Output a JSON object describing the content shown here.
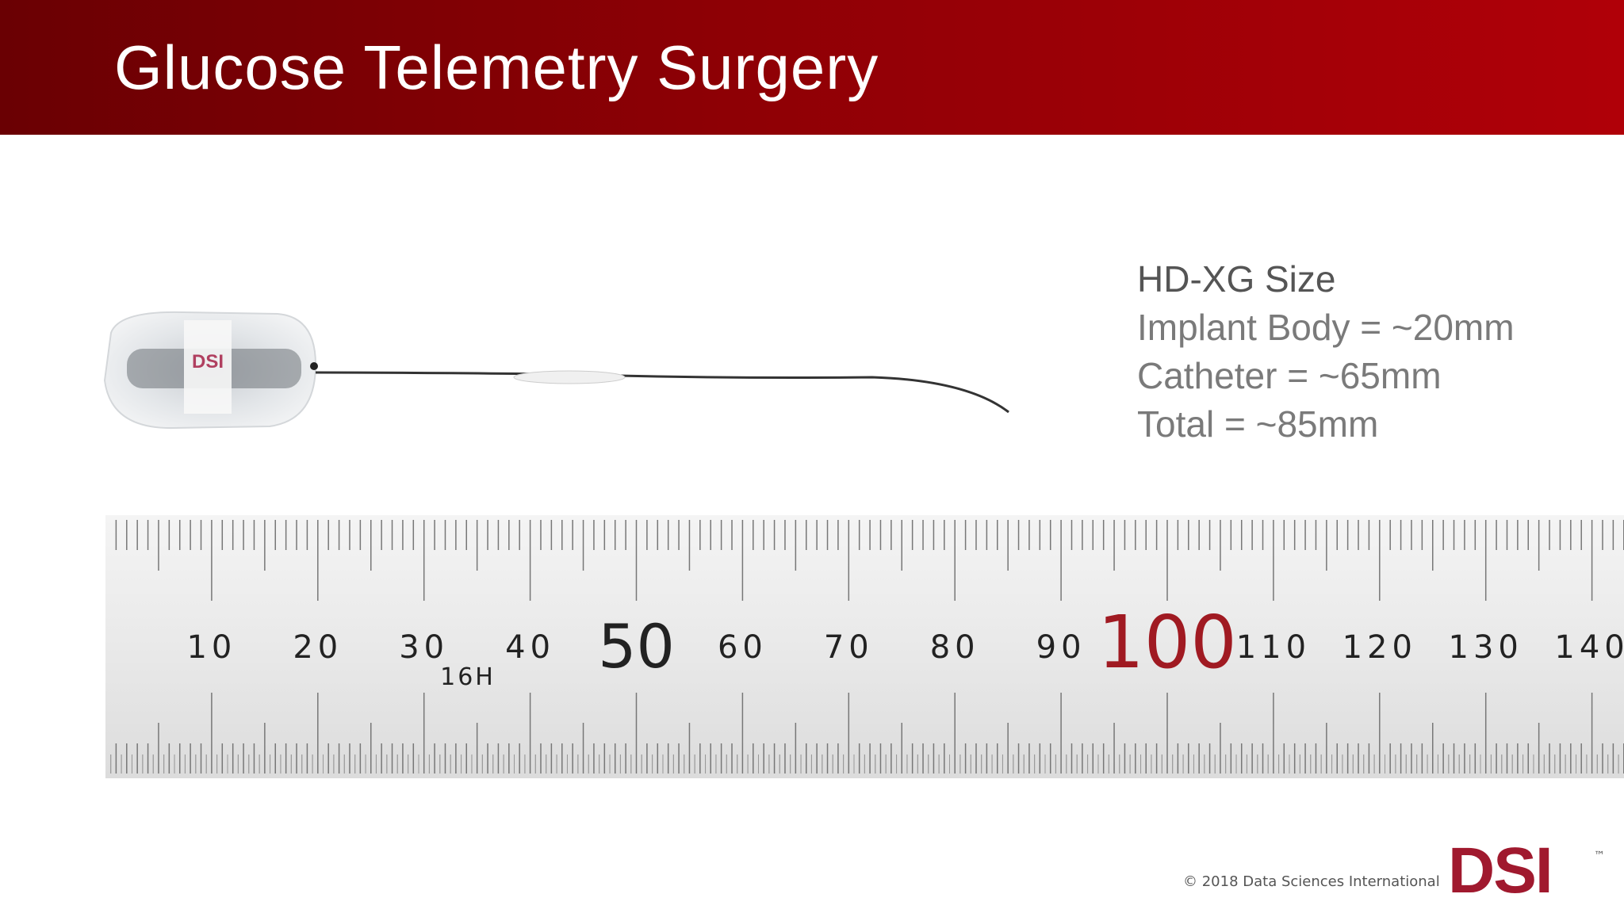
{
  "header": {
    "title": "Glucose Telemetry Surgery"
  },
  "specs": {
    "heading": "HD-XG  Size",
    "lines": [
      "Implant Body = ~20mm",
      "Catheter = ~65mm",
      "Total = ~85mm"
    ]
  },
  "implant": {
    "label": "DSI"
  },
  "ruler": {
    "labels": [
      "10",
      "20",
      "30",
      "40",
      "50",
      "60",
      "70",
      "80",
      "90",
      "100",
      "110",
      "120",
      "130",
      "140"
    ],
    "mark": "16H"
  },
  "footer": {
    "copyright": "© 2018 Data Sciences International",
    "logo": "DSI",
    "trademark": "™"
  }
}
